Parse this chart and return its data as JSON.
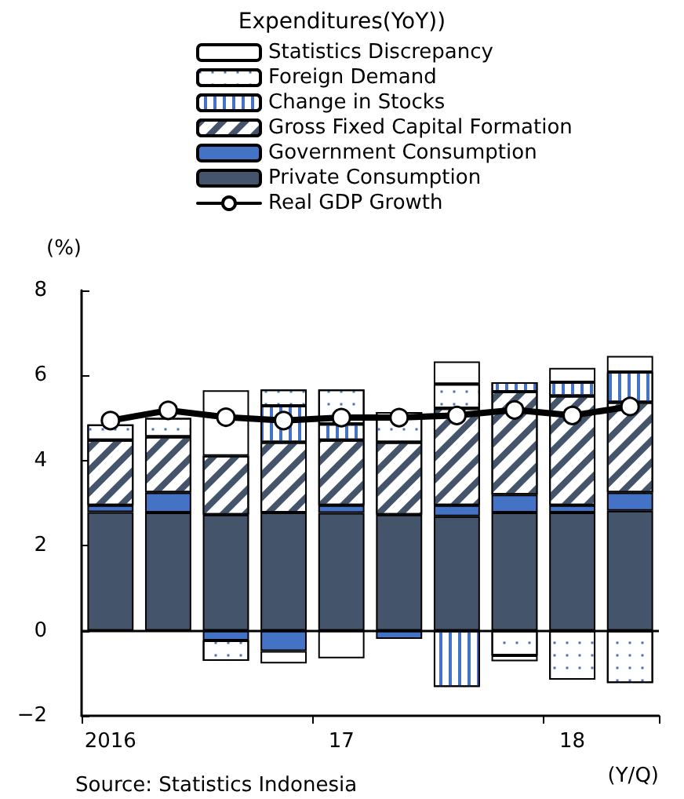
{
  "chart_data": {
    "type": "bar",
    "stacked": true,
    "title": "Expenditures(YoY))",
    "ylabel": "(%)",
    "xlabel": "(Y/Q)",
    "annotations": [
      "Source: Statistics Indonesia"
    ],
    "categories": [
      "2016",
      null,
      null,
      null,
      "17",
      null,
      null,
      null,
      "18",
      null
    ],
    "series": [
      {
        "name": "Private Consumption",
        "color": "#44546a",
        "values": [
          2.79,
          2.78,
          2.73,
          2.78,
          2.77,
          2.73,
          2.69,
          2.78,
          2.78,
          2.82
        ]
      },
      {
        "name": "Government Consumption",
        "color": "#4472c4",
        "values": [
          0.16,
          0.47,
          -0.23,
          -0.48,
          0.18,
          -0.19,
          0.26,
          0.42,
          0.17,
          0.43
        ]
      },
      {
        "name": "Gross Fixed Capital Formation",
        "color": "#ffffff",
        "values": [
          1.53,
          1.31,
          1.38,
          1.65,
          1.53,
          1.7,
          2.28,
          2.42,
          2.57,
          2.12
        ]
      },
      {
        "name": "Change in Stocks",
        "color": "#ffffff",
        "values": [
          null,
          null,
          null,
          0.86,
          0.38,
          null,
          -1.32,
          0.22,
          0.32,
          0.71
        ]
      },
      {
        "name": "Foreign Demand",
        "color": "#ffffff",
        "values": [
          0.37,
          0.44,
          -0.48,
          0.38,
          0.81,
          0.71,
          0.57,
          -0.58,
          -1.15,
          -1.23
        ]
      },
      {
        "name": "Statistics Discrepancy",
        "color": "#ffffff",
        "values": [
          null,
          null,
          1.54,
          -0.29,
          -0.65,
          null,
          0.53,
          -0.14,
          0.34,
          0.38
        ]
      },
      {
        "name": "Real GDP Growth",
        "type": "line",
        "color": "#000000",
        "values": [
          4.94,
          5.18,
          5.02,
          4.94,
          5.01,
          5.01,
          5.06,
          5.19,
          5.06,
          5.27
        ]
      }
    ],
    "ylim": [
      -2,
      8
    ],
    "yticks": [
      -2,
      0,
      2,
      4,
      6,
      8
    ],
    "grid": false,
    "legend": "top",
    "marker": "circle",
    "line_style": "solid",
    "ref_lines": [
      {
        "axis": "y",
        "value": 0
      }
    ]
  }
}
